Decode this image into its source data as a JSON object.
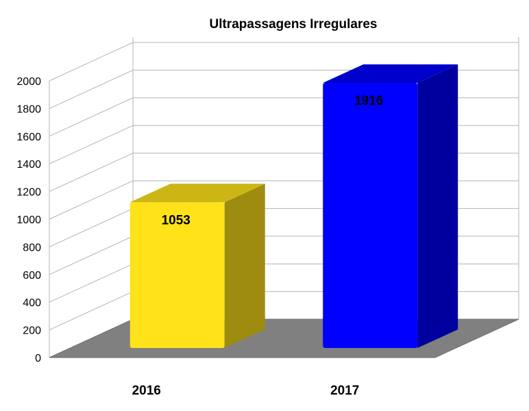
{
  "chart_data": {
    "type": "bar",
    "title": "Ultrapassagens Irregulares",
    "categories": [
      "2016",
      "2017"
    ],
    "values": [
      1053,
      1916
    ],
    "data_labels": [
      "1053",
      "1916"
    ],
    "colors": [
      "#FFE21A",
      "#0000FF"
    ],
    "ylim": [
      0,
      2000
    ],
    "yticks": [
      "0",
      "200",
      "400",
      "600",
      "800",
      "1000",
      "1200",
      "1400",
      "1600",
      "1800",
      "2000"
    ],
    "grid": true,
    "floor_color": "#808080",
    "style": "3d",
    "legend": "none"
  }
}
